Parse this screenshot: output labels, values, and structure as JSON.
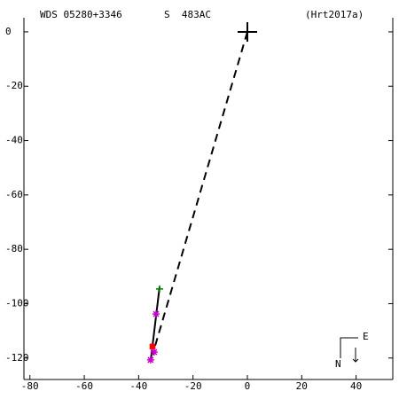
{
  "chart_data": {
    "type": "scatter",
    "header": {
      "wds": "WDS 05280+3346",
      "pair": "S  483AC",
      "reference": "(Hrt2017a)"
    },
    "compass": {
      "east": "E",
      "north": "N"
    },
    "xlim": [
      -82.2,
      53.5
    ],
    "ylim": [
      -127.9,
      5.2
    ],
    "xticks": [
      -80,
      -60,
      -40,
      -20,
      0,
      20,
      40
    ],
    "yticks": [
      0,
      -20,
      -40,
      -60,
      -80,
      -100,
      -120
    ],
    "primary": {
      "x": 0,
      "y": 0
    },
    "dash_end": {
      "x": -34.9,
      "y": -118.8
    },
    "track": {
      "x": [
        -32.3,
        -35.6
      ],
      "y": [
        -93.8,
        -121.3
      ]
    },
    "points": {
      "x": [
        -32.3,
        -33.6,
        -34.9,
        -34.3,
        -35.6
      ],
      "y": [
        -94.6,
        -103.8,
        -115.8,
        -117.8,
        -120.7
      ],
      "colors": [
        "#008000",
        "#cc00cc",
        "#ff0000",
        "#cc00cc",
        "#cc00cc"
      ],
      "markers": [
        "plus",
        "star",
        "square",
        "star",
        "star"
      ]
    }
  }
}
